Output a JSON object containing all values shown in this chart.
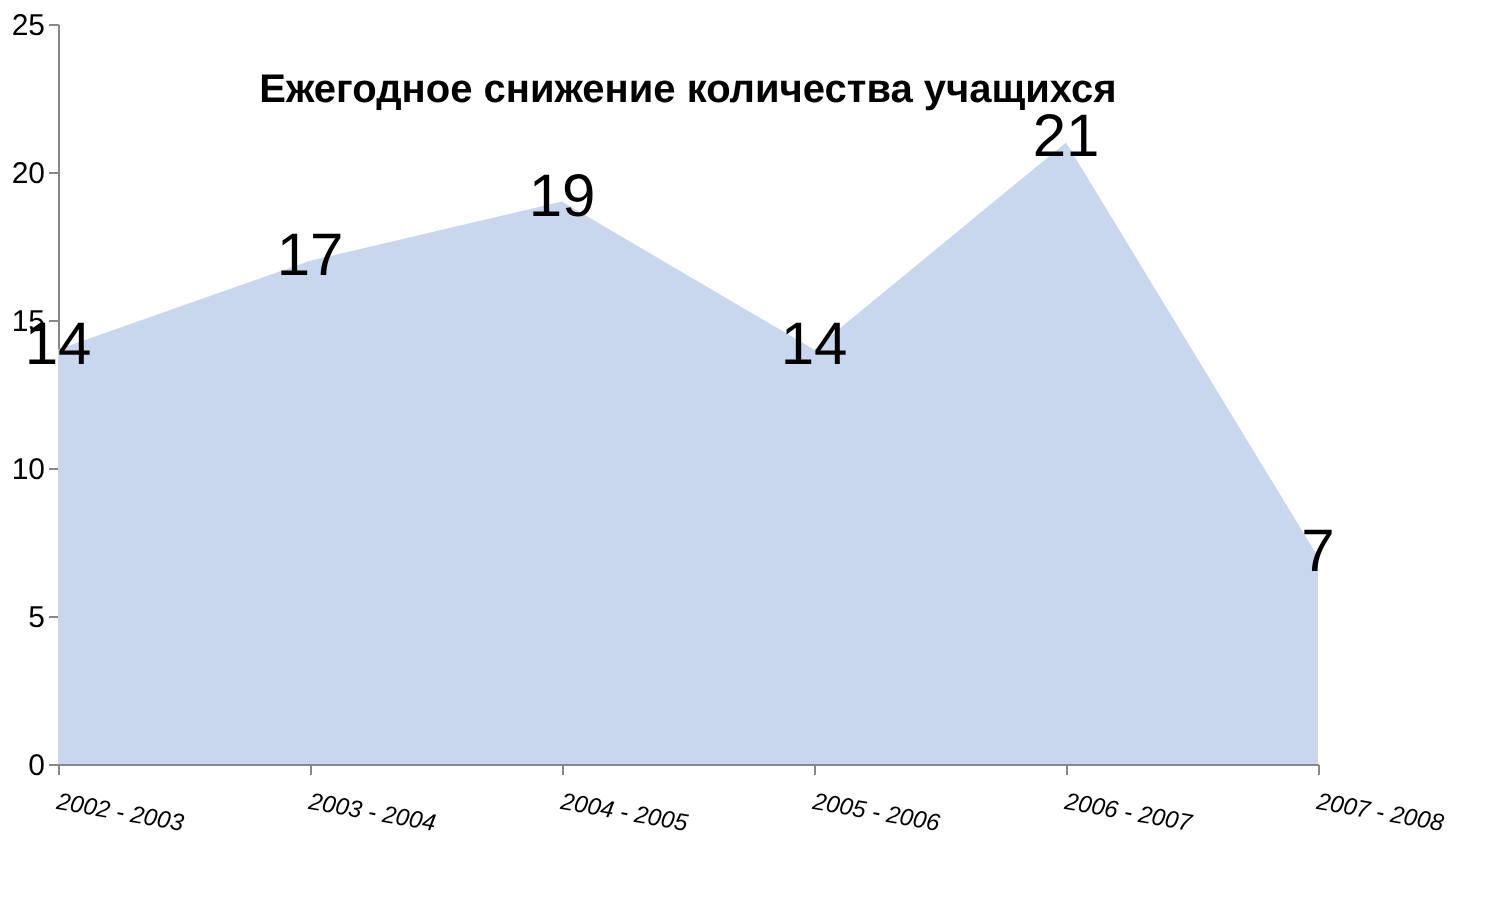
{
  "chart_data": {
    "type": "area",
    "title": "Ежегодное снижение количества учащихся",
    "categories": [
      "2002 - 2003",
      "2003 - 2004",
      "2004 - 2005",
      "2005 - 2006",
      "2006 - 2007",
      "2007 - 2008"
    ],
    "values": [
      14,
      17,
      19,
      14,
      21,
      7
    ],
    "color": "#c8d6ee",
    "ylim": [
      0,
      25
    ],
    "yticks": [
      0,
      5,
      10,
      15,
      20,
      25
    ],
    "grid": false,
    "data_labels": true
  }
}
